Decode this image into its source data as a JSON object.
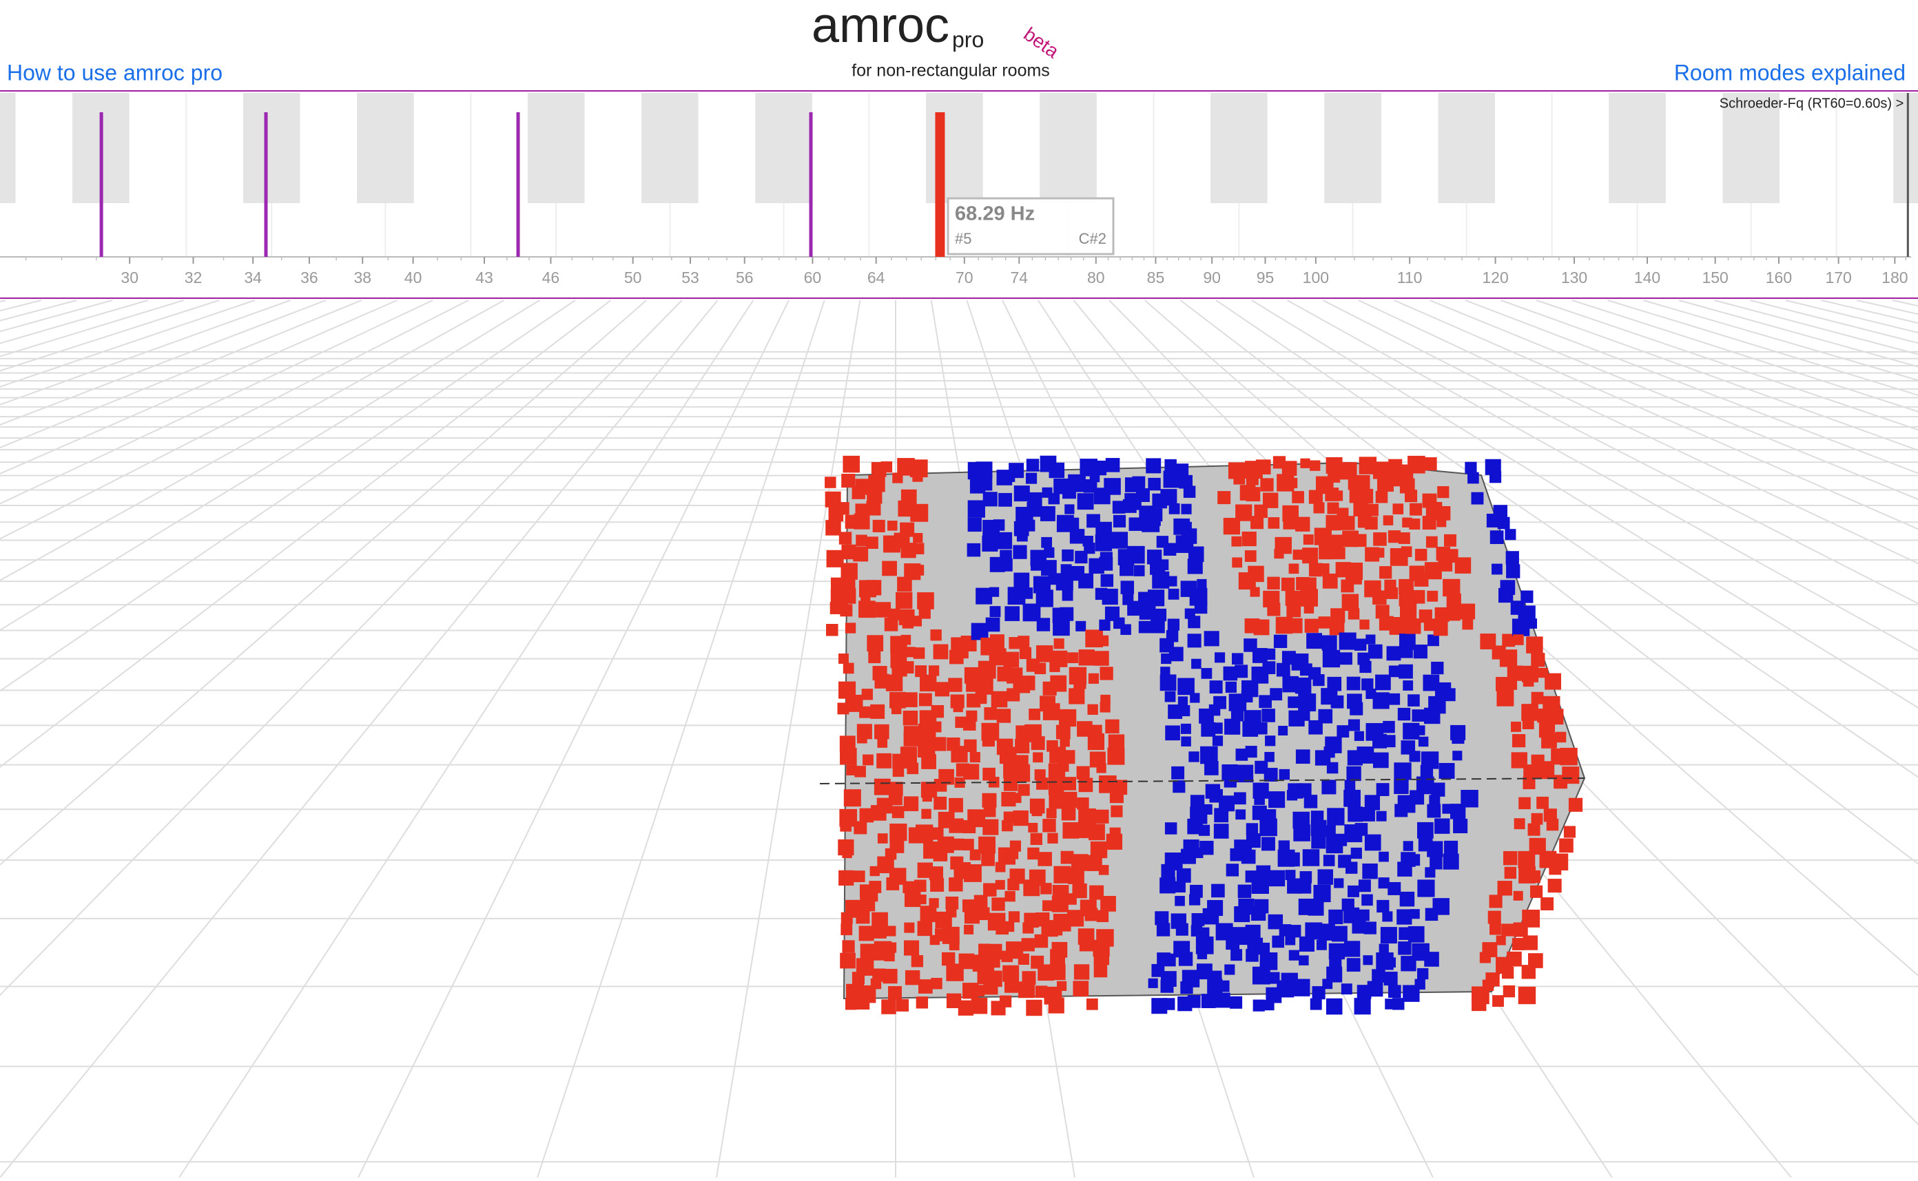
{
  "header": {
    "title": "amroc",
    "suffix": "pro",
    "badge": "beta",
    "subtitle": "for non-rectangular rooms"
  },
  "links": {
    "left": "How to use amroc pro",
    "right": "Room modes explained"
  },
  "chart_data": {
    "type": "modes",
    "x": [
      29.15,
      34.45,
      44.5,
      59.9,
      68.29
    ],
    "color": "#9c27b0",
    "highlight_index": 4,
    "highlight_color": "#e8301f",
    "log_x": true,
    "xlim": [
      26.3,
      183
    ],
    "xticks": [
      30,
      32,
      34,
      36,
      38,
      40,
      43,
      46,
      50,
      53,
      56,
      60,
      64,
      70,
      74,
      80,
      85,
      90,
      95,
      100,
      110,
      120,
      130,
      140,
      150,
      160,
      170,
      180
    ],
    "tooltip": {
      "label": "68.29 Hz",
      "index": "#5",
      "note": "C#2"
    },
    "schroeder": {
      "x": 182.4,
      "label": "Schroeder-Fq (RT60=0.60s) >"
    }
  }
}
